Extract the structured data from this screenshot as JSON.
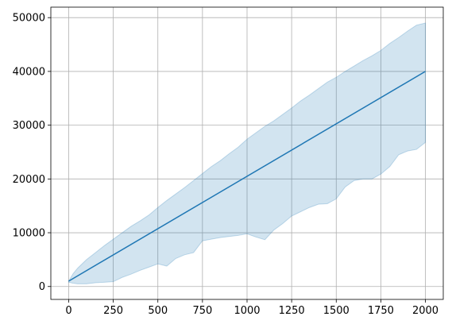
{
  "chart_data": {
    "type": "area",
    "title": "",
    "xlabel": "",
    "ylabel": "",
    "xlim": [
      -100,
      2100
    ],
    "ylim": [
      -2400,
      51950
    ],
    "grid": true,
    "x_ticks": [
      {
        "value": 0,
        "label": "0"
      },
      {
        "value": 250,
        "label": "250"
      },
      {
        "value": 500,
        "label": "500"
      },
      {
        "value": 750,
        "label": "750"
      },
      {
        "value": 1000,
        "label": "1000"
      },
      {
        "value": 1250,
        "label": "1250"
      },
      {
        "value": 1500,
        "label": "1500"
      },
      {
        "value": 1750,
        "label": "1750"
      },
      {
        "value": 2000,
        "label": "2000"
      }
    ],
    "y_ticks": [
      {
        "value": 0,
        "label": "0"
      },
      {
        "value": 10000,
        "label": "10000"
      },
      {
        "value": 20000,
        "label": "20000"
      },
      {
        "value": 30000,
        "label": "30000"
      },
      {
        "value": 40000,
        "label": "40000"
      },
      {
        "value": 50000,
        "label": "50000"
      }
    ],
    "series": [
      {
        "kind": "line",
        "color": "#1f77b4",
        "x": [
          0,
          2000
        ],
        "y": [
          1000,
          40000
        ]
      }
    ],
    "band": {
      "color": "#1f77b4",
      "opacity": 0.2,
      "x": [
        0,
        25,
        50,
        100,
        150,
        200,
        250,
        300,
        350,
        400,
        450,
        500,
        550,
        600,
        650,
        700,
        750,
        800,
        850,
        900,
        950,
        1000,
        1050,
        1100,
        1150,
        1200,
        1250,
        1300,
        1350,
        1400,
        1450,
        1500,
        1550,
        1600,
        1650,
        1700,
        1750,
        1800,
        1850,
        1900,
        1950,
        2000
      ],
      "upper": [
        1000,
        2400,
        3400,
        5000,
        6300,
        7600,
        8800,
        10000,
        11200,
        12200,
        13300,
        14700,
        16000,
        17200,
        18400,
        19700,
        21000,
        22300,
        23400,
        24700,
        25900,
        27400,
        28600,
        29800,
        30800,
        32000,
        33200,
        34500,
        35600,
        36800,
        38000,
        38900,
        40000,
        41000,
        42000,
        42900,
        43900,
        45200,
        46300,
        47500,
        48600,
        49000
      ],
      "lower": [
        800,
        600,
        500,
        500,
        700,
        800,
        900,
        1700,
        2300,
        3000,
        3600,
        4200,
        3800,
        5200,
        5900,
        6300,
        8500,
        8800,
        9100,
        9300,
        9500,
        9800,
        9200,
        8700,
        10500,
        11700,
        13100,
        13900,
        14700,
        15300,
        15400,
        16300,
        18500,
        19700,
        20000,
        20000,
        20900,
        22300,
        24500,
        25200,
        25500,
        26800
      ]
    }
  }
}
